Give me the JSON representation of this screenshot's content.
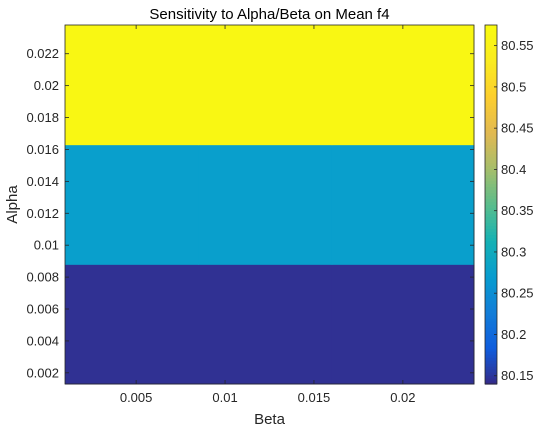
{
  "chart_data": {
    "type": "heatmap",
    "title": "Sensitivity to Alpha/Beta on Mean f4",
    "xlabel": "Beta",
    "ylabel": "Alpha",
    "x_ticks": [
      0.005,
      0.01,
      0.015,
      0.02
    ],
    "x_tick_labels": [
      "0.005",
      "0.01",
      "0.015",
      "0.02"
    ],
    "y_ticks": [
      0.002,
      0.004,
      0.006,
      0.008,
      0.01,
      0.012,
      0.014,
      0.016,
      0.018,
      0.02,
      0.022
    ],
    "y_tick_labels": [
      "0.002",
      "0.004",
      "0.006",
      "0.008",
      "0.01",
      "0.012",
      "0.014",
      "0.016",
      "0.018",
      "0.02",
      "0.022"
    ],
    "xlim": [
      0.001,
      0.024
    ],
    "ylim": [
      0.0013,
      0.0238
    ],
    "x_edges": [
      0.001,
      0.0085,
      0.016,
      0.024
    ],
    "y_edges": [
      0.0013,
      0.0088,
      0.0163,
      0.0238
    ],
    "values": [
      [
        80.146,
        80.146,
        80.146
      ],
      [
        80.276,
        80.276,
        80.276
      ],
      [
        80.563,
        80.563,
        80.563
      ]
    ],
    "colorbar": {
      "ticks": [
        80.15,
        80.2,
        80.25,
        80.3,
        80.35,
        80.4,
        80.45,
        80.5,
        80.55
      ],
      "tick_labels": [
        "80.15",
        "80.2",
        "80.25",
        "80.3",
        "80.35",
        "80.4",
        "80.45",
        "80.5",
        "80.55"
      ],
      "range": [
        80.14,
        80.575
      ],
      "colormap": "parula"
    },
    "grid": false
  }
}
